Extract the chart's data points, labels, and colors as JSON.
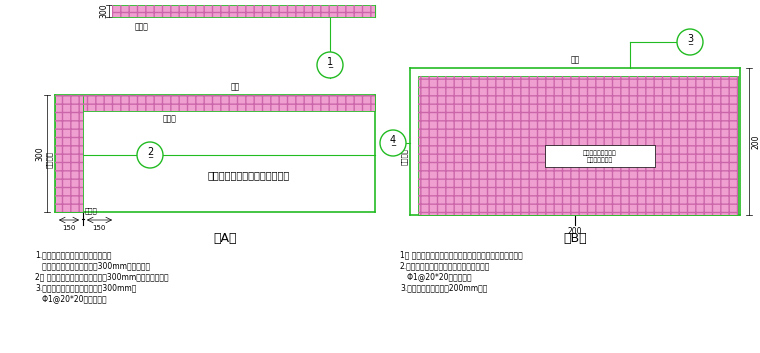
{
  "bg_color": "#ffffff",
  "line_color": "#22bb22",
  "pink_fill": "#f0a0d0",
  "pink_edge": "#cc66aa",
  "label_A": "（A）",
  "label_B": "（B）",
  "note_left_1": "1.蝒压加气砼砥块以外各种砥体内墙",
  "note_left_2": "   均在不同材料界面处，增设300mm宽加强网，",
  "note_left_3": "2． 若设计为混合砂浆墙面，宜挂300mm宽耐碱玻纤网，",
  "note_left_4": "3.若设计为水泥砂浆墙面，宜挂300mm宽",
  "note_left_5": "   Φ1@20*20镀锁锂网。",
  "note_right_1": "1． 蝒压加气砼砥块室内混合砂浆墙面均满挂耐碱玻纤网，",
  "note_right_2": "2.蝒压加气砼砥块室内水泥砂浆墙面宜满挂",
  "note_right_3": "   Φ1@20*20镀锁锂网，",
  "note_right_4": "3.与砼柱、梁、墙相交200mm宽。",
  "box_text_1": "蝒压加气砼砥块室内",
  "box_text_2": "满挂耐碱玻纤网"
}
